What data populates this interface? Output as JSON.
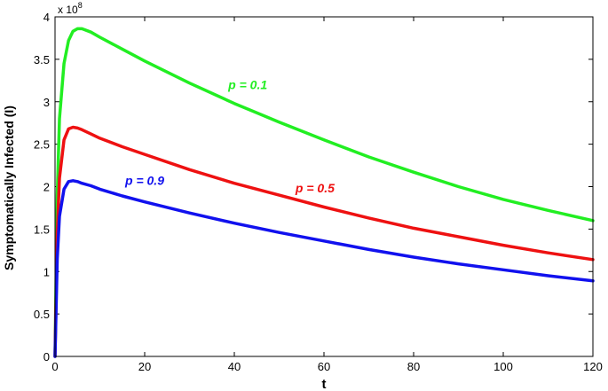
{
  "chart_data": {
    "type": "line",
    "title": "",
    "xlabel": "t",
    "ylabel": "Symptomatically Infected (I)",
    "y_multiplier_base": "x 10",
    "y_multiplier_exponent": "8",
    "xlim": [
      0,
      120
    ],
    "ylim": [
      0,
      4
    ],
    "x_ticks": [
      0,
      20,
      40,
      60,
      80,
      100,
      120
    ],
    "x_tick_labels": [
      "0",
      "20",
      "40",
      "60",
      "80",
      "100",
      "120"
    ],
    "y_ticks": [
      0,
      0.5,
      1,
      1.5,
      2,
      2.5,
      3,
      3.5,
      4
    ],
    "y_tick_labels": [
      "0",
      "0.5",
      "1",
      "1.5",
      "2",
      "2.5",
      "3",
      "3.5",
      "4"
    ],
    "grid": false,
    "series": [
      {
        "name": "p = 0.1",
        "color": "#22ee22",
        "x": [
          0,
          0.5,
          1,
          2,
          3,
          4,
          5,
          6,
          8,
          10,
          15,
          20,
          30,
          40,
          50,
          60,
          70,
          80,
          90,
          100,
          110,
          120
        ],
        "y": [
          0,
          1.9,
          2.8,
          3.45,
          3.72,
          3.83,
          3.86,
          3.86,
          3.82,
          3.76,
          3.62,
          3.48,
          3.22,
          2.98,
          2.76,
          2.55,
          2.35,
          2.17,
          2.0,
          1.85,
          1.72,
          1.6
        ]
      },
      {
        "name": "p = 0.5",
        "color": "#ee1111",
        "x": [
          0,
          0.5,
          1,
          2,
          3,
          4,
          5,
          6,
          8,
          10,
          15,
          20,
          30,
          40,
          50,
          60,
          70,
          80,
          90,
          100,
          110,
          120
        ],
        "y": [
          0,
          1.45,
          2.1,
          2.55,
          2.68,
          2.7,
          2.69,
          2.67,
          2.62,
          2.57,
          2.47,
          2.38,
          2.2,
          2.04,
          1.9,
          1.76,
          1.63,
          1.51,
          1.41,
          1.31,
          1.22,
          1.14
        ]
      },
      {
        "name": "p = 0.9",
        "color": "#1111ee",
        "x": [
          0,
          0.5,
          1,
          2,
          3,
          4,
          5,
          6,
          8,
          10,
          15,
          20,
          30,
          40,
          50,
          60,
          70,
          80,
          90,
          100,
          110,
          120
        ],
        "y": [
          0,
          1.15,
          1.65,
          1.97,
          2.06,
          2.07,
          2.06,
          2.04,
          2.01,
          1.97,
          1.89,
          1.82,
          1.69,
          1.57,
          1.46,
          1.36,
          1.26,
          1.17,
          1.09,
          1.02,
          0.95,
          0.89
        ]
      }
    ],
    "annotations": [
      {
        "text": "p = 0.1",
        "color": "#22ee22",
        "x": 43,
        "y": 3.15
      },
      {
        "text": "p = 0.5",
        "color": "#ee1111",
        "x": 58,
        "y": 1.93
      },
      {
        "text": "p = 0.9",
        "color": "#1111ee",
        "x": 20,
        "y": 2.02
      }
    ]
  }
}
